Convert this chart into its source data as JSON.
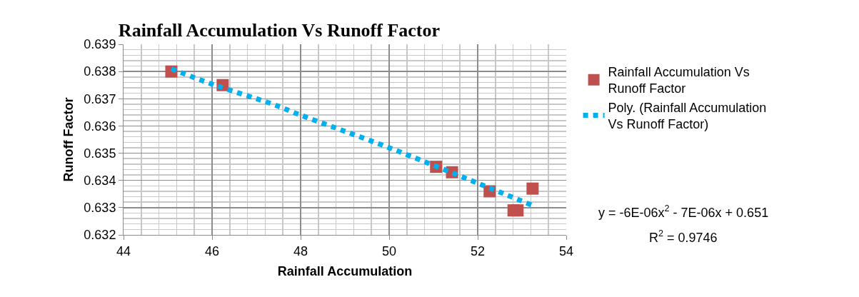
{
  "chart_data": {
    "type": "scatter",
    "title": "Rainfall Accumulation Vs Runoff Factor",
    "xlabel": "Rainfall Accumulation",
    "ylabel": "Runoff Factor",
    "xlim": [
      44,
      54
    ],
    "xticks": [
      44,
      46,
      48,
      50,
      52,
      54
    ],
    "ylim": [
      0.632,
      0.639
    ],
    "yticks": [
      0.632,
      0.633,
      0.634,
      0.635,
      0.636,
      0.637,
      0.638,
      0.639
    ],
    "grid": true,
    "legend": "right",
    "series": [
      {
        "name": "Rainfall Accumulation Vs Runoff Factor",
        "marker": "square",
        "color": "#c0504d",
        "x": [
          45.08,
          46.24,
          51.06,
          51.42,
          52.27,
          52.81,
          52.9,
          53.24
        ],
        "values": [
          0.638,
          0.6375,
          0.6345,
          0.6343,
          0.6336,
          0.6329,
          0.6329,
          0.6337
        ]
      },
      {
        "name": "Poly. (Rainfall Accumulation Vs Runoff Factor)",
        "type": "line",
        "line_style": "dotted",
        "color": "#00b0f0",
        "x": [
          45.08,
          46.06,
          47.37,
          48.0,
          50.0,
          52.0,
          53.21
        ],
        "values": [
          0.6381,
          0.6375,
          0.6368,
          0.6364,
          0.6352,
          0.6339,
          0.6331
        ]
      }
    ],
    "annotations": [
      "y = -6E-06x$^{2}$ - 7E-06x + 0.651",
      "R$^{2}$ = 0.9746"
    ]
  }
}
